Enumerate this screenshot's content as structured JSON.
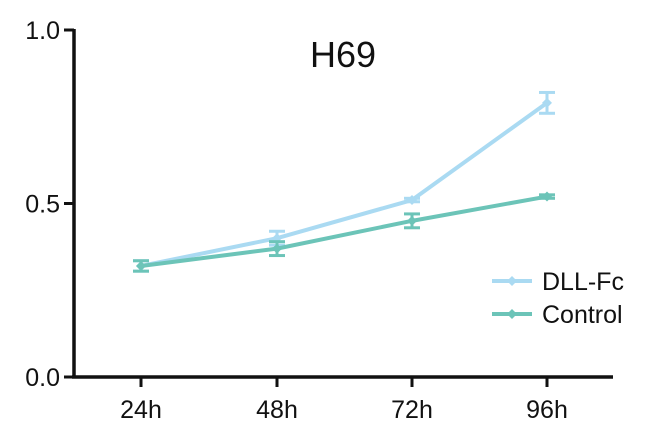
{
  "chart_data": {
    "type": "line",
    "title": "H69",
    "xlabel": "",
    "ylabel": "",
    "categories": [
      "24h",
      "48h",
      "72h",
      "96h"
    ],
    "ylim": [
      0.0,
      1.0
    ],
    "yticks": [
      "0.0",
      "0.5",
      "1.0"
    ],
    "grid": false,
    "legend": "right",
    "series": [
      {
        "name": "DLL-Fc",
        "color": "#aadaf2",
        "values": [
          0.32,
          0.4,
          0.51,
          0.79
        ],
        "errors": [
          0.015,
          0.02,
          0.005,
          0.03
        ]
      },
      {
        "name": "Control",
        "color": "#6cc4b8",
        "values": [
          0.32,
          0.37,
          0.45,
          0.52
        ],
        "errors": [
          0.015,
          0.02,
          0.02,
          0.005
        ]
      }
    ]
  }
}
